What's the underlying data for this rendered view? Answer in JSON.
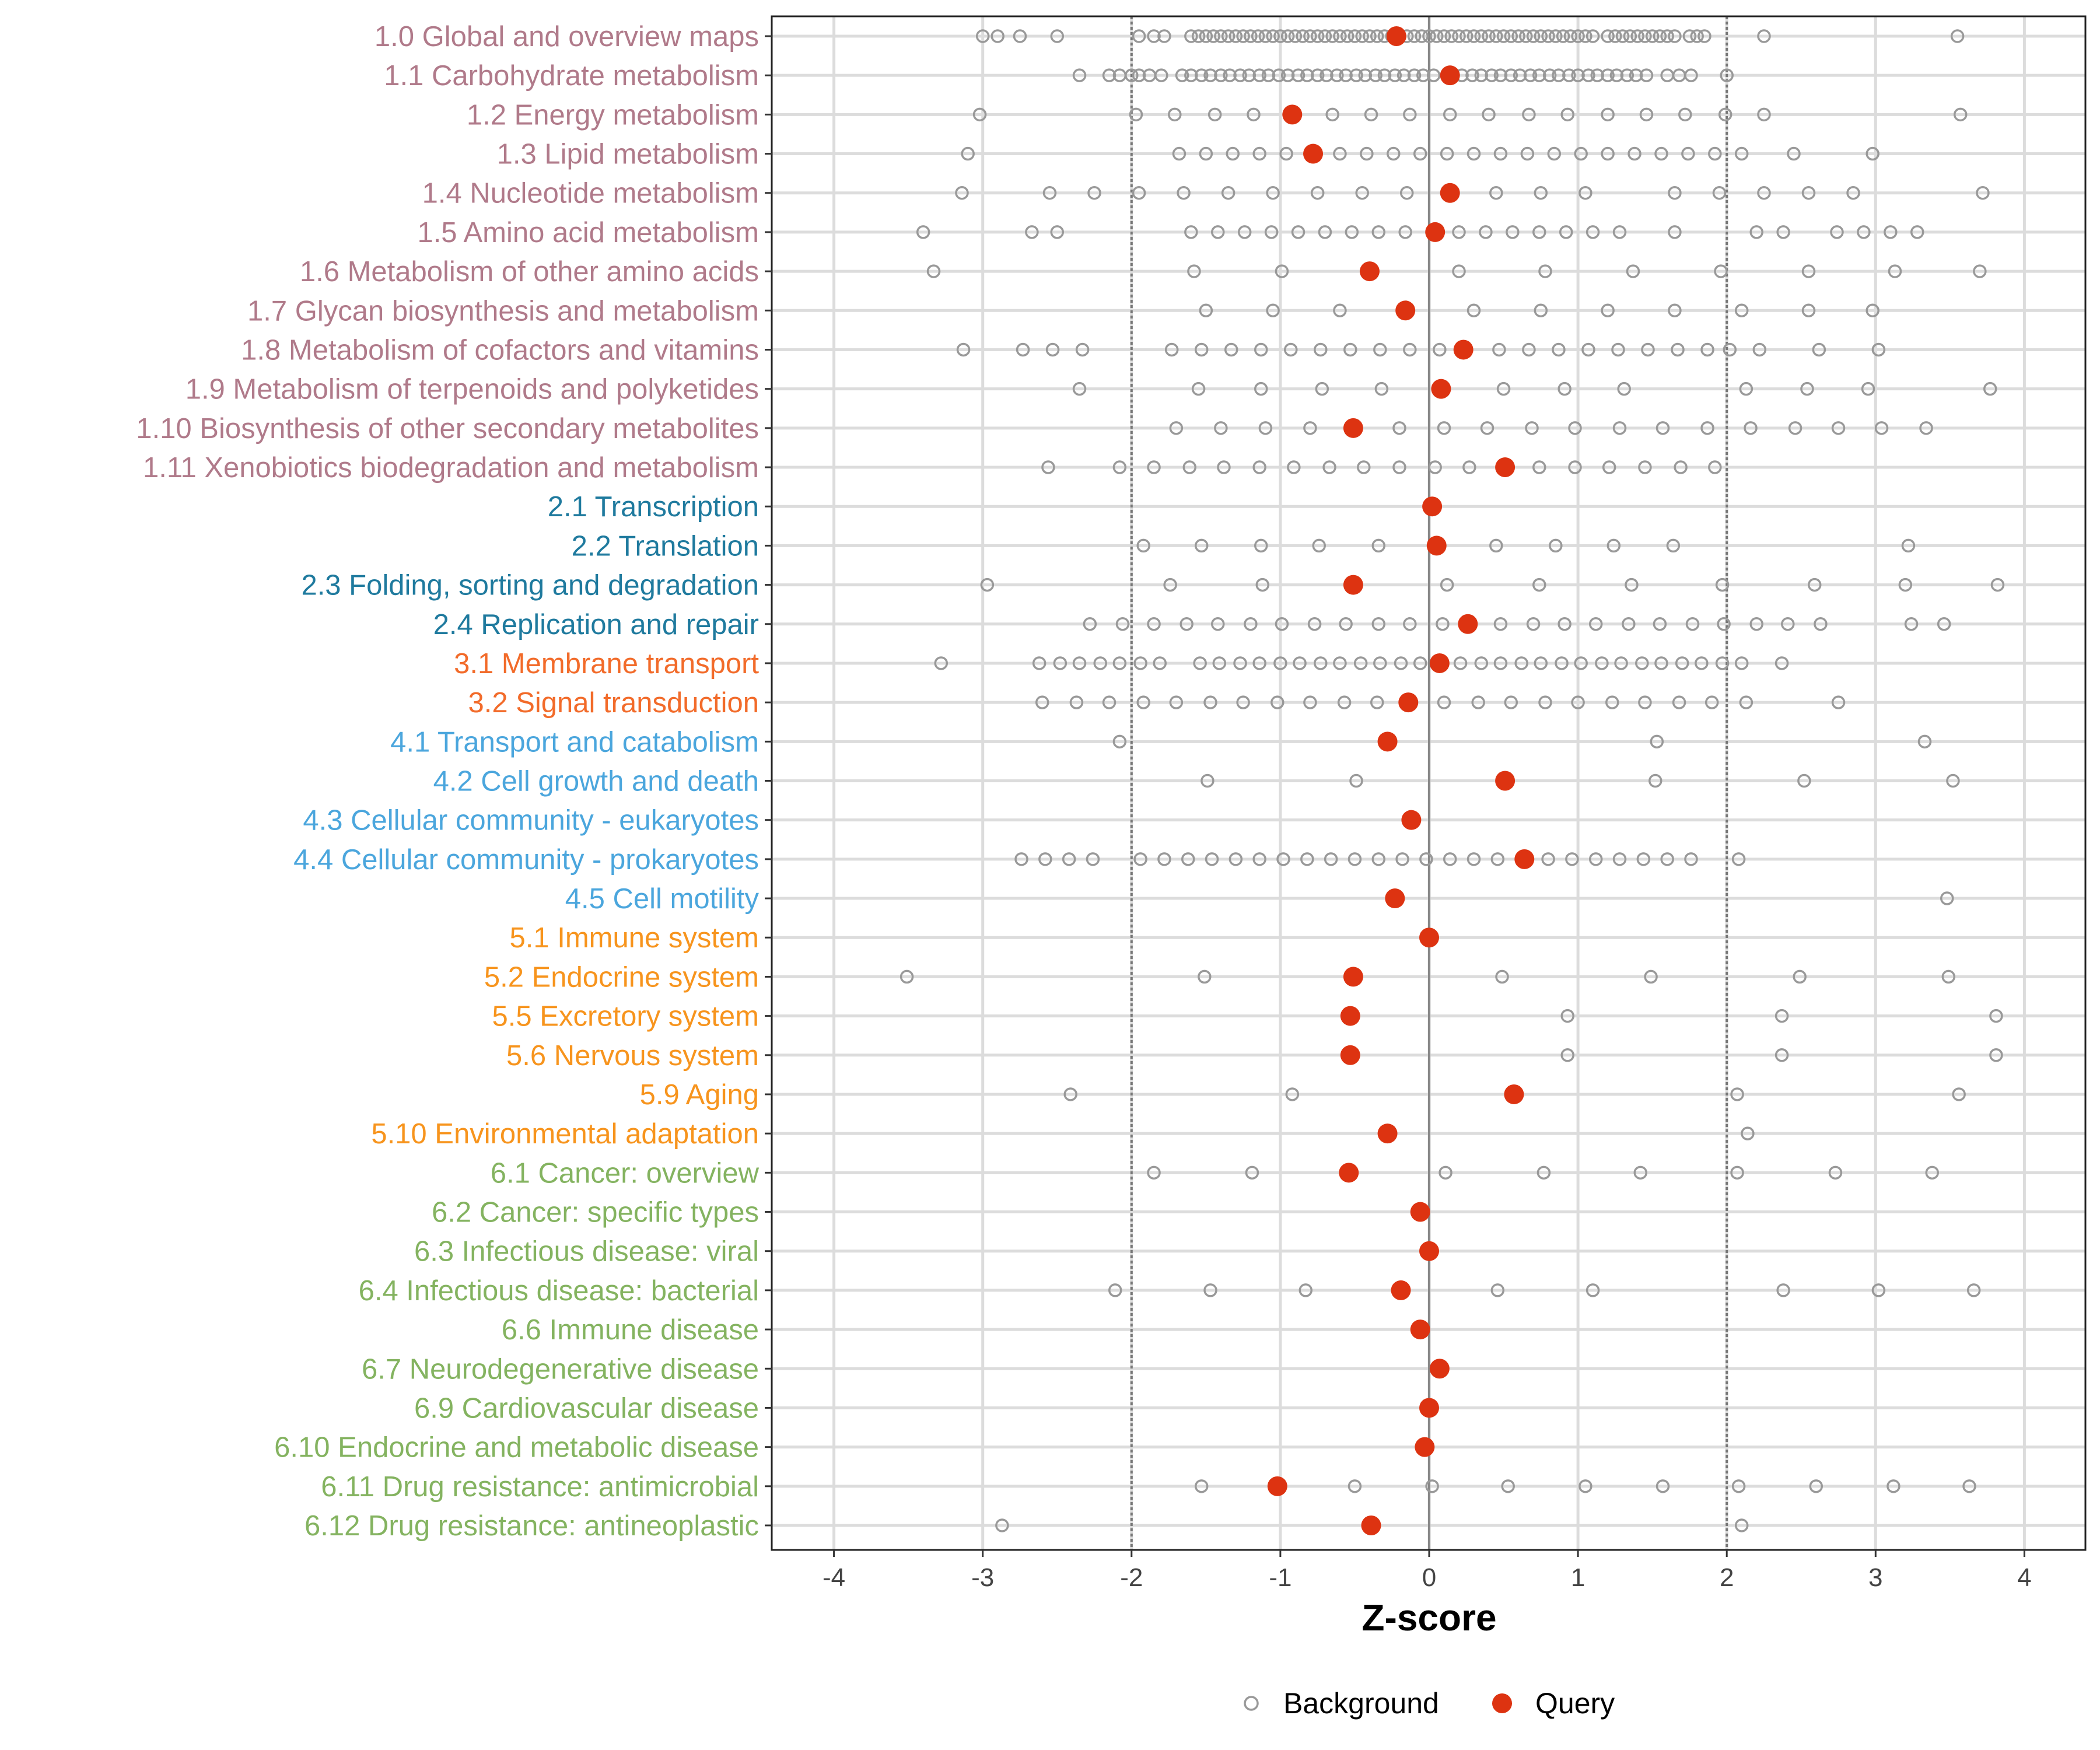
{
  "chart_data": {
    "type": "scatter",
    "xlabel": "Z-score",
    "ylabel": "",
    "xlim": [
      -4.25,
      4.25
    ],
    "xticks": [
      -4,
      -3,
      -2,
      -1,
      0,
      1,
      2,
      3,
      4
    ],
    "xtick_labels": [
      "-4",
      "-3",
      "-2",
      "-1",
      "0",
      "1",
      "2",
      "3",
      "4"
    ],
    "reference_lines": {
      "dotted": [
        -2,
        2
      ],
      "solid": [
        0
      ]
    },
    "grid": true,
    "legend": {
      "placement": "bottom",
      "entries": [
        "Background",
        "Query"
      ]
    },
    "colors": {
      "background": "#999999",
      "query": "#DD3311",
      "groups": {
        "1": "#B07A8A",
        "2": "#1F7A9E",
        "3": "#F26B2A",
        "4": "#4BA6DD",
        "5": "#F7941D",
        "6": "#84B360"
      }
    },
    "categories": [
      {
        "label": "1.0 Global and overview maps",
        "group": "1",
        "query": -0.22,
        "background": [
          -3.0,
          -2.9,
          -2.75,
          -2.5,
          -1.95,
          -1.85,
          -1.78,
          -1.6,
          -1.55,
          -1.5,
          -1.45,
          -1.4,
          -1.35,
          -1.3,
          -1.25,
          -1.2,
          -1.15,
          -1.1,
          -1.05,
          -1.0,
          -0.95,
          -0.9,
          -0.85,
          -0.8,
          -0.75,
          -0.7,
          -0.65,
          -0.6,
          -0.55,
          -0.5,
          -0.45,
          -0.4,
          -0.35,
          -0.3,
          -0.25,
          -0.15,
          -0.1,
          -0.05,
          0.0,
          0.05,
          0.1,
          0.15,
          0.2,
          0.25,
          0.3,
          0.35,
          0.4,
          0.45,
          0.5,
          0.55,
          0.6,
          0.65,
          0.7,
          0.75,
          0.8,
          0.85,
          0.9,
          0.95,
          1.0,
          1.05,
          1.1,
          1.2,
          1.25,
          1.3,
          1.35,
          1.4,
          1.45,
          1.5,
          1.55,
          1.6,
          1.65,
          1.75,
          1.8,
          1.85,
          2.25,
          3.55
        ]
      },
      {
        "label": "1.1 Carbohydrate metabolism",
        "group": "1",
        "query": 0.14,
        "background": [
          -2.35,
          -2.15,
          -2.08,
          -2.0,
          -1.95,
          -1.88,
          -1.8,
          -1.66,
          -1.6,
          -1.53,
          -1.47,
          -1.4,
          -1.34,
          -1.27,
          -1.21,
          -1.14,
          -1.08,
          -1.01,
          -0.95,
          -0.88,
          -0.82,
          -0.75,
          -0.69,
          -0.62,
          -0.56,
          -0.49,
          -0.43,
          -0.36,
          -0.3,
          -0.23,
          -0.17,
          -0.1,
          -0.04,
          0.03,
          0.22,
          0.29,
          0.35,
          0.42,
          0.48,
          0.55,
          0.61,
          0.68,
          0.74,
          0.81,
          0.87,
          0.94,
          1.0,
          1.07,
          1.13,
          1.2,
          1.26,
          1.33,
          1.39,
          1.46,
          1.6,
          1.68,
          1.76,
          2.0
        ]
      },
      {
        "label": "1.2 Energy metabolism",
        "group": "1",
        "query": -0.92,
        "background": [
          -3.02,
          -1.97,
          -1.71,
          -1.44,
          -1.18,
          -0.65,
          -0.39,
          -0.13,
          0.14,
          0.4,
          0.67,
          0.93,
          1.2,
          1.46,
          1.72,
          1.99,
          2.25,
          3.57
        ]
      },
      {
        "label": "1.3 Lipid metabolism",
        "group": "1",
        "query": -0.78,
        "background": [
          -3.1,
          -1.68,
          -1.5,
          -1.32,
          -1.14,
          -0.96,
          -0.6,
          -0.42,
          -0.24,
          -0.06,
          0.12,
          0.3,
          0.48,
          0.66,
          0.84,
          1.02,
          1.2,
          1.38,
          1.56,
          1.74,
          1.92,
          2.1,
          2.45,
          2.98
        ]
      },
      {
        "label": "1.4 Nucleotide metabolism",
        "group": "1",
        "query": 0.14,
        "background": [
          -3.14,
          -2.55,
          -2.25,
          -1.95,
          -1.65,
          -1.35,
          -1.05,
          -0.75,
          -0.45,
          -0.15,
          0.45,
          0.75,
          1.05,
          1.65,
          1.95,
          2.25,
          2.55,
          2.85,
          3.72
        ]
      },
      {
        "label": "1.5 Amino acid metabolism",
        "group": "1",
        "query": 0.04,
        "background": [
          -3.4,
          -2.67,
          -2.5,
          -1.6,
          -1.42,
          -1.24,
          -1.06,
          -0.88,
          -0.7,
          -0.52,
          -0.34,
          -0.16,
          0.2,
          0.38,
          0.56,
          0.74,
          0.92,
          1.1,
          1.28,
          1.65,
          2.2,
          2.38,
          2.74,
          2.92,
          3.1,
          3.28
        ]
      },
      {
        "label": "1.6 Metabolism of other amino acids",
        "group": "1",
        "query": -0.4,
        "background": [
          -3.33,
          -1.58,
          -0.99,
          0.2,
          0.78,
          1.37,
          1.96,
          2.55,
          3.13,
          3.7
        ]
      },
      {
        "label": "1.7 Glycan biosynthesis and metabolism",
        "group": "1",
        "query": -0.16,
        "background": [
          -1.5,
          -1.05,
          -0.6,
          0.3,
          0.75,
          1.2,
          1.65,
          2.1,
          2.55,
          2.98
        ]
      },
      {
        "label": "1.8 Metabolism of cofactors and vitamins",
        "group": "1",
        "query": 0.23,
        "background": [
          -3.13,
          -2.73,
          -2.53,
          -2.33,
          -1.73,
          -1.53,
          -1.33,
          -1.13,
          -0.93,
          -0.73,
          -0.53,
          -0.33,
          -0.13,
          0.07,
          0.47,
          0.67,
          0.87,
          1.07,
          1.27,
          1.47,
          1.67,
          1.87,
          2.02,
          2.22,
          2.62,
          3.02
        ]
      },
      {
        "label": "1.9 Metabolism of terpenoids and polyketides",
        "group": "1",
        "query": 0.08,
        "background": [
          -2.35,
          -1.55,
          -1.13,
          -0.72,
          -0.32,
          0.5,
          0.91,
          1.31,
          2.13,
          2.54,
          2.95,
          3.77
        ]
      },
      {
        "label": "1.10 Biosynthesis of other secondary metabolites",
        "group": "1",
        "query": -0.51,
        "background": [
          -1.7,
          -1.4,
          -1.1,
          -0.8,
          -0.2,
          0.1,
          0.39,
          0.69,
          0.98,
          1.28,
          1.57,
          1.87,
          2.16,
          2.46,
          2.75,
          3.04,
          3.34
        ]
      },
      {
        "label": "1.11 Xenobiotics biodegradation and metabolism",
        "group": "1",
        "query": 0.51,
        "background": [
          -2.56,
          -2.08,
          -1.85,
          -1.61,
          -1.38,
          -1.14,
          -0.91,
          -0.67,
          -0.44,
          -0.2,
          0.04,
          0.27,
          0.74,
          0.98,
          1.21,
          1.45,
          1.69,
          1.92
        ]
      },
      {
        "label": "2.1 Transcription",
        "group": "2",
        "query": 0.02,
        "background": []
      },
      {
        "label": "2.2 Translation",
        "group": "2",
        "query": 0.05,
        "background": [
          -1.92,
          -1.53,
          -1.13,
          -0.74,
          -0.34,
          0.45,
          0.85,
          1.24,
          1.64,
          3.22
        ]
      },
      {
        "label": "2.3 Folding, sorting and degradation",
        "group": "2",
        "query": -0.51,
        "background": [
          -2.97,
          -1.74,
          -1.12,
          0.12,
          0.74,
          1.36,
          1.97,
          2.59,
          3.2,
          3.82
        ]
      },
      {
        "label": "2.4 Replication and repair",
        "group": "2",
        "query": 0.26,
        "background": [
          -2.28,
          -2.06,
          -1.85,
          -1.63,
          -1.42,
          -1.2,
          -0.99,
          -0.77,
          -0.56,
          -0.34,
          -0.13,
          0.09,
          0.48,
          0.7,
          0.91,
          1.12,
          1.34,
          1.55,
          1.77,
          1.98,
          2.2,
          2.41,
          2.63,
          3.24,
          3.46
        ]
      },
      {
        "label": "3.1 Membrane transport",
        "group": "3",
        "query": 0.07,
        "background": [
          -3.28,
          -2.62,
          -2.48,
          -2.35,
          -2.21,
          -2.08,
          -1.94,
          -1.81,
          -1.54,
          -1.41,
          -1.27,
          -1.14,
          -1.0,
          -0.87,
          -0.73,
          -0.6,
          -0.46,
          -0.33,
          -0.19,
          -0.06,
          0.21,
          0.35,
          0.48,
          0.62,
          0.75,
          0.89,
          1.02,
          1.16,
          1.29,
          1.43,
          1.56,
          1.7,
          1.83,
          1.97,
          2.1,
          2.37
        ]
      },
      {
        "label": "3.2 Signal transduction",
        "group": "3",
        "query": -0.14,
        "background": [
          -2.6,
          -2.37,
          -2.15,
          -1.92,
          -1.7,
          -1.47,
          -1.25,
          -1.02,
          -0.8,
          -0.57,
          -0.35,
          0.1,
          0.33,
          0.55,
          0.78,
          1.0,
          1.23,
          1.45,
          1.68,
          1.9,
          2.13,
          2.75
        ]
      },
      {
        "label": "4.1 Transport and catabolism",
        "group": "4",
        "query": -0.28,
        "background": [
          -2.08,
          1.53,
          3.33
        ]
      },
      {
        "label": "4.2 Cell growth and death",
        "group": "4",
        "query": 0.51,
        "background": [
          -1.49,
          -0.49,
          1.52,
          2.52,
          3.52
        ]
      },
      {
        "label": "4.3 Cellular community - eukaryotes",
        "group": "4",
        "query": -0.12,
        "background": []
      },
      {
        "label": "4.4 Cellular community - prokaryotes",
        "group": "4",
        "query": 0.64,
        "background": [
          -2.74,
          -2.58,
          -2.42,
          -2.26,
          -1.94,
          -1.78,
          -1.62,
          -1.46,
          -1.3,
          -1.14,
          -0.98,
          -0.82,
          -0.66,
          -0.5,
          -0.34,
          -0.18,
          -0.02,
          0.14,
          0.3,
          0.46,
          0.8,
          0.96,
          1.12,
          1.28,
          1.44,
          1.6,
          1.76,
          2.08
        ]
      },
      {
        "label": "4.5 Cell motility",
        "group": "4",
        "query": -0.23,
        "background": [
          3.48
        ]
      },
      {
        "label": "5.1 Immune system",
        "group": "5",
        "query": 0.0,
        "background": []
      },
      {
        "label": "5.2 Endocrine system",
        "group": "5",
        "query": -0.51,
        "background": [
          -3.51,
          -1.51,
          0.49,
          1.49,
          2.49,
          3.49
        ]
      },
      {
        "label": "5.5 Excretory system",
        "group": "5",
        "query": -0.53,
        "background": [
          0.93,
          2.37,
          3.81
        ]
      },
      {
        "label": "5.6 Nervous system",
        "group": "5",
        "query": -0.53,
        "background": [
          0.93,
          2.37,
          3.81
        ]
      },
      {
        "label": "5.9 Aging",
        "group": "5",
        "query": 0.57,
        "background": [
          -2.41,
          -0.92,
          2.07,
          3.56
        ]
      },
      {
        "label": "5.10 Environmental adaptation",
        "group": "5",
        "query": -0.28,
        "background": [
          2.14
        ]
      },
      {
        "label": "6.1 Cancer: overview",
        "group": "6",
        "query": -0.54,
        "background": [
          -1.85,
          -1.19,
          0.11,
          0.77,
          1.42,
          2.07,
          2.73,
          3.38
        ]
      },
      {
        "label": "6.2 Cancer: specific types",
        "group": "6",
        "query": -0.06,
        "background": []
      },
      {
        "label": "6.3 Infectious disease: viral",
        "group": "6",
        "query": 0.0,
        "background": []
      },
      {
        "label": "6.4 Infectious disease: bacterial",
        "group": "6",
        "query": -0.19,
        "background": [
          -2.11,
          -1.47,
          -0.83,
          0.46,
          1.1,
          2.38,
          3.02,
          3.66
        ]
      },
      {
        "label": "6.6 Immune disease",
        "group": "6",
        "query": -0.06,
        "background": []
      },
      {
        "label": "6.7 Neurodegenerative disease",
        "group": "6",
        "query": 0.07,
        "background": []
      },
      {
        "label": "6.9 Cardiovascular disease",
        "group": "6",
        "query": 0.0,
        "background": []
      },
      {
        "label": "6.10 Endocrine and metabolic disease",
        "group": "6",
        "query": -0.03,
        "background": []
      },
      {
        "label": "6.11 Drug resistance: antimicrobial",
        "group": "6",
        "query": -1.02,
        "background": [
          -1.53,
          -0.5,
          0.02,
          0.53,
          1.05,
          1.57,
          2.08,
          2.6,
          3.12,
          3.63
        ]
      },
      {
        "label": "6.12 Drug resistance: antineoplastic",
        "group": "6",
        "query": -0.39,
        "background": [
          -2.87,
          2.1
        ]
      }
    ]
  }
}
